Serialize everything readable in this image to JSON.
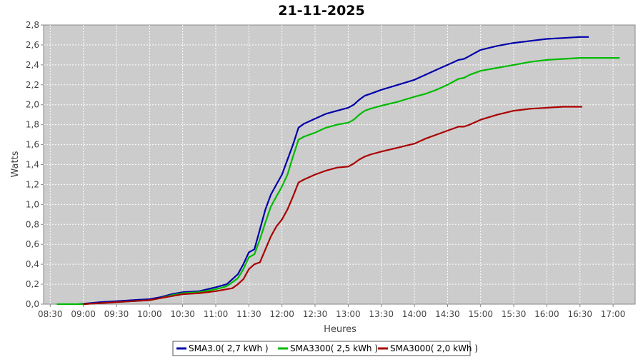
{
  "chart_data": {
    "type": "line",
    "title": "21-11-2025",
    "xlabel": "Heures",
    "ylabel": "Watts",
    "xlim": [
      "08:24",
      "17:20"
    ],
    "ylim": [
      0,
      2.8
    ],
    "x_ticks": [
      "08:30",
      "09:00",
      "09:30",
      "10:00",
      "10:30",
      "11:00",
      "11:30",
      "12:00",
      "12:30",
      "13:00",
      "13:30",
      "14:00",
      "14:30",
      "15:00",
      "15:30",
      "16:00",
      "16:30",
      "17:00"
    ],
    "y_ticks": [
      "0,0",
      "0,2",
      "0,4",
      "0,6",
      "0,8",
      "1,0",
      "1,2",
      "1,4",
      "1,6",
      "1,8",
      "2,0",
      "2,2",
      "2,4",
      "2,6",
      "2,8"
    ],
    "grid": true,
    "legend_position": "bottom",
    "background_color": "#cccccc",
    "series": [
      {
        "name": "SMA3.0( 2,7 kWh )",
        "color": "#0000aa",
        "x": [
          "08:56",
          "09:15",
          "09:30",
          "09:45",
          "10:00",
          "10:10",
          "10:20",
          "10:30",
          "10:45",
          "11:00",
          "11:10",
          "11:15",
          "11:20",
          "11:25",
          "11:30",
          "11:35",
          "11:40",
          "11:45",
          "11:50",
          "11:55",
          "12:00",
          "12:05",
          "12:10",
          "12:15",
          "12:20",
          "12:30",
          "12:40",
          "12:50",
          "13:00",
          "13:05",
          "13:10",
          "13:15",
          "13:20",
          "13:30",
          "13:45",
          "14:00",
          "14:10",
          "14:20",
          "14:30",
          "14:40",
          "14:45",
          "14:50",
          "15:00",
          "15:15",
          "15:30",
          "15:45",
          "16:00",
          "16:15",
          "16:30",
          "16:38"
        ],
        "values": [
          0.0,
          0.02,
          0.03,
          0.04,
          0.05,
          0.07,
          0.1,
          0.12,
          0.13,
          0.17,
          0.2,
          0.25,
          0.3,
          0.4,
          0.52,
          0.55,
          0.75,
          0.95,
          1.1,
          1.2,
          1.3,
          1.45,
          1.6,
          1.77,
          1.81,
          1.86,
          1.91,
          1.94,
          1.97,
          2.0,
          2.05,
          2.09,
          2.11,
          2.15,
          2.2,
          2.25,
          2.3,
          2.35,
          2.4,
          2.45,
          2.46,
          2.49,
          2.55,
          2.59,
          2.62,
          2.64,
          2.66,
          2.67,
          2.68,
          2.68
        ]
      },
      {
        "name": "SMA3300( 2,5 kWh )",
        "color": "#00bb00",
        "x": [
          "08:36",
          "09:00",
          "09:30",
          "09:45",
          "10:00",
          "10:10",
          "10:20",
          "10:30",
          "10:45",
          "11:00",
          "11:10",
          "11:15",
          "11:20",
          "11:25",
          "11:30",
          "11:35",
          "11:40",
          "11:45",
          "11:50",
          "11:55",
          "12:00",
          "12:05",
          "12:10",
          "12:15",
          "12:20",
          "12:30",
          "12:40",
          "12:50",
          "13:00",
          "13:05",
          "13:10",
          "13:15",
          "13:20",
          "13:30",
          "13:45",
          "14:00",
          "14:10",
          "14:20",
          "14:30",
          "14:40",
          "14:45",
          "14:50",
          "15:00",
          "15:15",
          "15:30",
          "15:45",
          "16:00",
          "16:15",
          "16:30",
          "16:45",
          "17:06"
        ],
        "values": [
          0.0,
          0.0,
          0.02,
          0.03,
          0.04,
          0.06,
          0.09,
          0.11,
          0.12,
          0.15,
          0.18,
          0.22,
          0.26,
          0.35,
          0.47,
          0.5,
          0.65,
          0.82,
          0.98,
          1.08,
          1.18,
          1.3,
          1.48,
          1.65,
          1.68,
          1.72,
          1.77,
          1.8,
          1.82,
          1.85,
          1.9,
          1.94,
          1.96,
          1.99,
          2.03,
          2.08,
          2.11,
          2.15,
          2.2,
          2.26,
          2.27,
          2.3,
          2.34,
          2.37,
          2.4,
          2.43,
          2.45,
          2.46,
          2.47,
          2.47,
          2.47
        ]
      },
      {
        "name": "SMA3000( 2,0 kWh )",
        "color": "#aa0000",
        "x": [
          "09:00",
          "09:15",
          "09:30",
          "09:45",
          "10:00",
          "10:10",
          "10:20",
          "10:30",
          "10:45",
          "11:00",
          "11:10",
          "11:15",
          "11:20",
          "11:25",
          "11:30",
          "11:35",
          "11:40",
          "11:45",
          "11:50",
          "11:55",
          "12:00",
          "12:05",
          "12:10",
          "12:15",
          "12:20",
          "12:30",
          "12:40",
          "12:50",
          "13:00",
          "13:05",
          "13:10",
          "13:15",
          "13:20",
          "13:30",
          "13:45",
          "14:00",
          "14:10",
          "14:20",
          "14:30",
          "14:40",
          "14:45",
          "14:50",
          "15:00",
          "15:15",
          "15:30",
          "15:45",
          "16:00",
          "16:15",
          "16:32"
        ],
        "values": [
          0.0,
          0.01,
          0.02,
          0.03,
          0.04,
          0.06,
          0.08,
          0.1,
          0.11,
          0.13,
          0.15,
          0.16,
          0.2,
          0.25,
          0.35,
          0.4,
          0.42,
          0.55,
          0.68,
          0.78,
          0.85,
          0.95,
          1.08,
          1.22,
          1.25,
          1.3,
          1.34,
          1.37,
          1.38,
          1.41,
          1.45,
          1.48,
          1.5,
          1.53,
          1.57,
          1.61,
          1.66,
          1.7,
          1.74,
          1.78,
          1.78,
          1.8,
          1.85,
          1.9,
          1.94,
          1.96,
          1.97,
          1.98,
          1.98
        ]
      }
    ]
  }
}
